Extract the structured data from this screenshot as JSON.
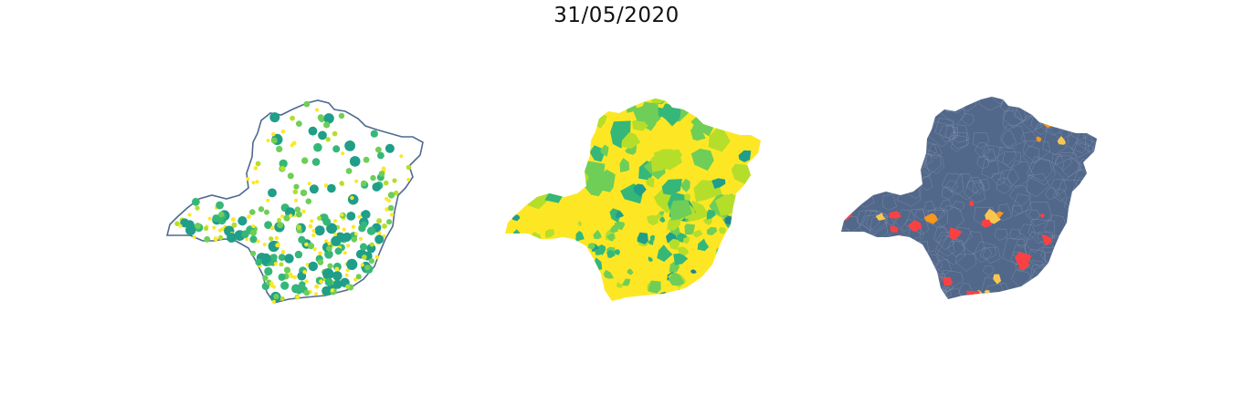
{
  "title": "31/05/2020",
  "colors": {
    "outline": "#4f6a8f",
    "viridis": [
      "#fde725",
      "#b5de2b",
      "#6ece58",
      "#35b779",
      "#1f9e89",
      "#26828e"
    ],
    "choropleth_base": "#fde725",
    "risk_base": "#52688a",
    "risk_classes": [
      "#f94144",
      "#f8961e",
      "#f9c74f"
    ]
  },
  "panels": [
    {
      "name": "bubble-map",
      "description_style": "proportional symbols on white state outline"
    },
    {
      "name": "choropleth-map",
      "description_style": "municipalities colored with viridis-like scale"
    },
    {
      "name": "risk-map",
      "description_style": "municipalities in slate blue with red/orange/yellow highlights"
    }
  ]
}
